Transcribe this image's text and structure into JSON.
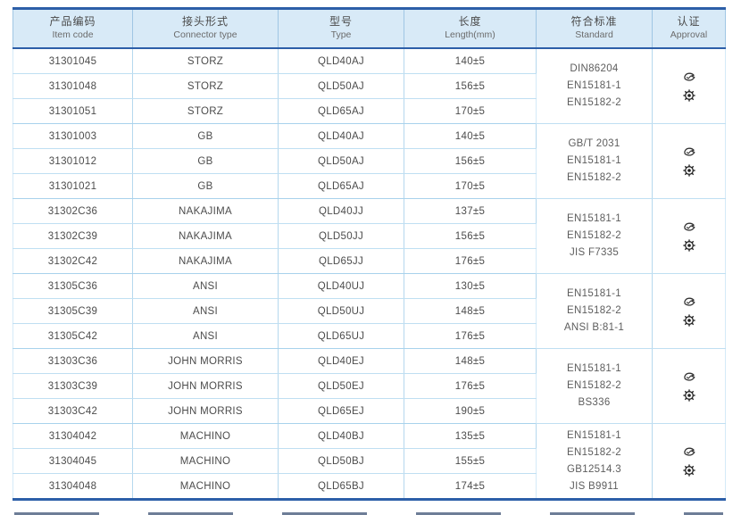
{
  "table": {
    "columns": [
      {
        "key": "item-code",
        "zh": "产品编码",
        "en": "Item code"
      },
      {
        "key": "connector-type",
        "zh": "接头形式",
        "en": "Connector type"
      },
      {
        "key": "type",
        "zh": "型号",
        "en": "Type"
      },
      {
        "key": "length",
        "zh": "长度",
        "en": "Length(mm)"
      },
      {
        "key": "standard",
        "zh": "符合标准",
        "en": "Standard"
      },
      {
        "key": "approval",
        "zh": "认证",
        "en": "Approval"
      }
    ],
    "groups": [
      {
        "rows": [
          {
            "item_code": "31301045",
            "connector_type": "STORZ",
            "type": "QLD40AJ",
            "length": "140±5"
          },
          {
            "item_code": "31301048",
            "connector_type": "STORZ",
            "type": "QLD50AJ",
            "length": "156±5"
          },
          {
            "item_code": "31301051",
            "connector_type": "STORZ",
            "type": "QLD65AJ",
            "length": "170±5"
          }
        ],
        "standards": [
          "DIN86204",
          "EN15181-1",
          "EN15182-2"
        ]
      },
      {
        "rows": [
          {
            "item_code": "31301003",
            "connector_type": "GB",
            "type": "QLD40AJ",
            "length": "140±5"
          },
          {
            "item_code": "31301012",
            "connector_type": "GB",
            "type": "QLD50AJ",
            "length": "156±5"
          },
          {
            "item_code": "31301021",
            "connector_type": "GB",
            "type": "QLD65AJ",
            "length": "170±5"
          }
        ],
        "standards": [
          "GB/T 2031",
          "EN15181-1",
          "EN15182-2"
        ]
      },
      {
        "rows": [
          {
            "item_code": "31302C36",
            "connector_type": "NAKAJIMA",
            "type": "QLD40JJ",
            "length": "137±5"
          },
          {
            "item_code": "31302C39",
            "connector_type": "NAKAJIMA",
            "type": "QLD50JJ",
            "length": "156±5"
          },
          {
            "item_code": "31302C42",
            "connector_type": "NAKAJIMA",
            "type": "QLD65JJ",
            "length": "176±5"
          }
        ],
        "standards": [
          "EN15181-1",
          "EN15182-2",
          "JIS F7335"
        ]
      },
      {
        "rows": [
          {
            "item_code": "31305C36",
            "connector_type": "ANSI",
            "type": "QLD40UJ",
            "length": "130±5"
          },
          {
            "item_code": "31305C39",
            "connector_type": "ANSI",
            "type": "QLD50UJ",
            "length": "148±5"
          },
          {
            "item_code": "31305C42",
            "connector_type": "ANSI",
            "type": "QLD65UJ",
            "length": "176±5"
          }
        ],
        "standards": [
          "EN15181-1",
          "EN15182-2",
          "ANSI B:81-1"
        ]
      },
      {
        "rows": [
          {
            "item_code": "31303C36",
            "connector_type": "JOHN MORRIS",
            "type": "QLD40EJ",
            "length": "148±5"
          },
          {
            "item_code": "31303C39",
            "connector_type": "JOHN MORRIS",
            "type": "QLD50EJ",
            "length": "176±5"
          },
          {
            "item_code": "31303C42",
            "connector_type": "JOHN MORRIS",
            "type": "QLD65EJ",
            "length": "190±5"
          }
        ],
        "standards": [
          "EN15181-1",
          "EN15182-2",
          "BS336"
        ]
      },
      {
        "rows": [
          {
            "item_code": "31304042",
            "connector_type": "MACHINO",
            "type": "QLD40BJ",
            "length": "135±5"
          },
          {
            "item_code": "31304045",
            "connector_type": "MACHINO",
            "type": "QLD50BJ",
            "length": "155±5"
          },
          {
            "item_code": "31304048",
            "connector_type": "MACHINO",
            "type": "QLD65BJ",
            "length": "174±5"
          }
        ],
        "standards": [
          "EN15181-1",
          "EN15182-2",
          "GB12514.3",
          "JIS B9911"
        ]
      }
    ],
    "approval_icons": [
      "certification-mark-icon",
      "wheelmark-icon"
    ]
  },
  "colors": {
    "accent_dark_blue": "#2d5fa8",
    "header_background": "#d8eaf7",
    "row_line_light_blue": "#bfdff2",
    "text": "#4c4c4c"
  }
}
